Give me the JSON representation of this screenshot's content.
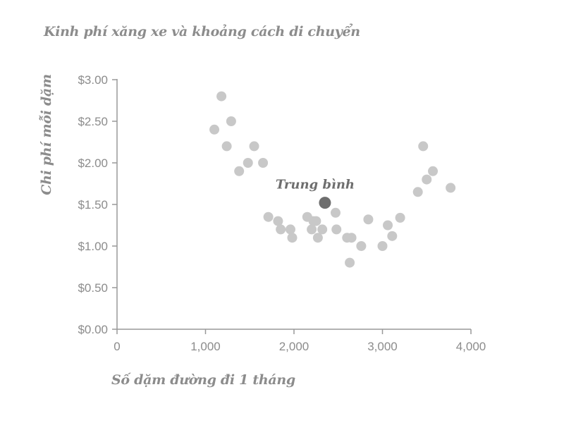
{
  "chart_data": {
    "type": "scatter",
    "title": "Kinh phí xăng xe và khoảng cách di chuyển",
    "xlabel": "Số dặm đường đi 1 tháng",
    "ylabel": "Chi phí mỗi dặm",
    "xlim": [
      0,
      4000
    ],
    "ylim": [
      0,
      3
    ],
    "x_ticks": [
      0,
      1000,
      2000,
      3000,
      4000
    ],
    "x_tick_labels": [
      "0",
      "1,000",
      "2,000",
      "3,000",
      "4,000"
    ],
    "y_ticks": [
      0,
      0.5,
      1,
      1.5,
      2,
      2.5,
      3
    ],
    "y_tick_labels": [
      "$0.00",
      "$0.50",
      "$1.00",
      "$1.50",
      "$2.00",
      "$2.50",
      "$3.00"
    ],
    "grid": false,
    "point_color": "#c8c8c8",
    "highlight_color": "#6e6e6e",
    "axis_color": "#999999",
    "points": [
      {
        "x": 1100,
        "y": 2.4
      },
      {
        "x": 1180,
        "y": 2.8
      },
      {
        "x": 1240,
        "y": 2.2
      },
      {
        "x": 1290,
        "y": 2.5
      },
      {
        "x": 1380,
        "y": 1.9
      },
      {
        "x": 1480,
        "y": 2.0
      },
      {
        "x": 1550,
        "y": 2.2
      },
      {
        "x": 1650,
        "y": 2.0
      },
      {
        "x": 1710,
        "y": 1.35
      },
      {
        "x": 1820,
        "y": 1.3
      },
      {
        "x": 1850,
        "y": 1.2
      },
      {
        "x": 1960,
        "y": 1.2
      },
      {
        "x": 1980,
        "y": 1.1
      },
      {
        "x": 2150,
        "y": 1.35
      },
      {
        "x": 2200,
        "y": 1.2
      },
      {
        "x": 2220,
        "y": 1.3
      },
      {
        "x": 2250,
        "y": 1.3
      },
      {
        "x": 2270,
        "y": 1.1
      },
      {
        "x": 2320,
        "y": 1.2
      },
      {
        "x": 2470,
        "y": 1.4
      },
      {
        "x": 2480,
        "y": 1.2
      },
      {
        "x": 2600,
        "y": 1.1
      },
      {
        "x": 2650,
        "y": 1.1
      },
      {
        "x": 2630,
        "y": 0.8
      },
      {
        "x": 2760,
        "y": 1.0
      },
      {
        "x": 2840,
        "y": 1.32
      },
      {
        "x": 3000,
        "y": 1.0
      },
      {
        "x": 3060,
        "y": 1.25
      },
      {
        "x": 3110,
        "y": 1.12
      },
      {
        "x": 3200,
        "y": 1.34
      },
      {
        "x": 3400,
        "y": 1.65
      },
      {
        "x": 3460,
        "y": 2.2
      },
      {
        "x": 3500,
        "y": 1.8
      },
      {
        "x": 3570,
        "y": 1.9
      },
      {
        "x": 3770,
        "y": 1.7
      }
    ],
    "highlight": {
      "label": "Trung bình",
      "x": 2350,
      "y": 1.52
    }
  }
}
